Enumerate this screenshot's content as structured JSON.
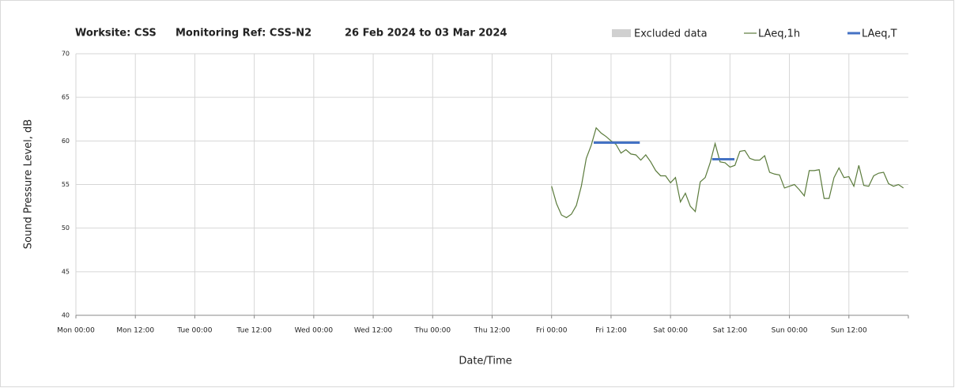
{
  "chart_data": {
    "type": "line",
    "title": [
      "Worksite: CSS",
      "Monitoring Ref: CSS-N2",
      "26 Feb 2024 to 03 Mar 2024"
    ],
    "xlabel": "Date/Time",
    "ylabel": "Sound Pressure Level, dB",
    "xlim": [
      0,
      168
    ],
    "xticks": [
      {
        "value": 0,
        "label": "Mon 00:00"
      },
      {
        "value": 12,
        "label": "Mon 12:00"
      },
      {
        "value": 24,
        "label": "Tue 00:00"
      },
      {
        "value": 36,
        "label": "Tue 12:00"
      },
      {
        "value": 48,
        "label": "Wed 00:00"
      },
      {
        "value": 60,
        "label": "Wed 12:00"
      },
      {
        "value": 72,
        "label": "Thu 00:00"
      },
      {
        "value": 84,
        "label": "Thu 12:00"
      },
      {
        "value": 96,
        "label": "Fri 00:00"
      },
      {
        "value": 108,
        "label": "Fri 12:00"
      },
      {
        "value": 120,
        "label": "Sat 00:00"
      },
      {
        "value": 132,
        "label": "Sat 12:00"
      },
      {
        "value": 144,
        "label": "Sun 00:00"
      },
      {
        "value": 156,
        "label": "Sun 12:00"
      }
    ],
    "ylim": [
      40,
      70
    ],
    "yticks": [
      40,
      45,
      50,
      55,
      60,
      65,
      70
    ],
    "grid": true,
    "legend": "top-right",
    "excluded": {
      "name": "Excluded data",
      "color": "#d0d0d0"
    },
    "series": [
      {
        "name": "LAeq,1h",
        "color": "#5b7b3c",
        "x": [
          96,
          97,
          98,
          99,
          100,
          101,
          102,
          103,
          104,
          105,
          106,
          107,
          108,
          109,
          110,
          111,
          112,
          113,
          114,
          115,
          116,
          117,
          118,
          119,
          120,
          121,
          122,
          123,
          124,
          125,
          126,
          127,
          128,
          129,
          130,
          131,
          132,
          133,
          134,
          135,
          136,
          137,
          138,
          139,
          140,
          141,
          142,
          143,
          144,
          145,
          146,
          147,
          148,
          149,
          150,
          151,
          152,
          153,
          154,
          155,
          156,
          157,
          158,
          159,
          160,
          161,
          162,
          163,
          164,
          165,
          166,
          167
        ],
        "values": [
          54.8,
          52.8,
          51.5,
          51.2,
          51.6,
          52.6,
          54.8,
          58.0,
          59.5,
          61.5,
          60.9,
          60.5,
          60.0,
          59.6,
          58.6,
          59.0,
          58.5,
          58.4,
          57.8,
          58.4,
          57.6,
          56.6,
          56.0,
          56.0,
          55.2,
          55.8,
          53.0,
          54.0,
          52.5,
          51.9,
          55.3,
          55.8,
          57.5,
          59.7,
          57.6,
          57.5,
          57.0,
          57.2,
          58.8,
          58.9,
          58.0,
          57.8,
          57.8,
          58.3,
          56.4,
          56.2,
          56.1,
          54.6,
          54.8,
          55.0,
          54.4,
          53.7,
          56.6,
          56.6,
          56.7,
          53.4,
          53.4,
          55.8,
          56.9,
          55.8,
          55.9,
          54.8,
          57.2,
          54.9,
          54.8,
          56.0,
          56.3,
          56.4,
          55.1,
          54.8,
          55.0,
          54.6
        ]
      },
      {
        "name": "LAeq,T",
        "color": "#4472c4",
        "segments": [
          {
            "x": [
              104.5,
              113.8
            ],
            "value": 59.8
          },
          {
            "x": [
              128.4,
              132.9
            ],
            "value": 57.9
          }
        ]
      }
    ]
  }
}
